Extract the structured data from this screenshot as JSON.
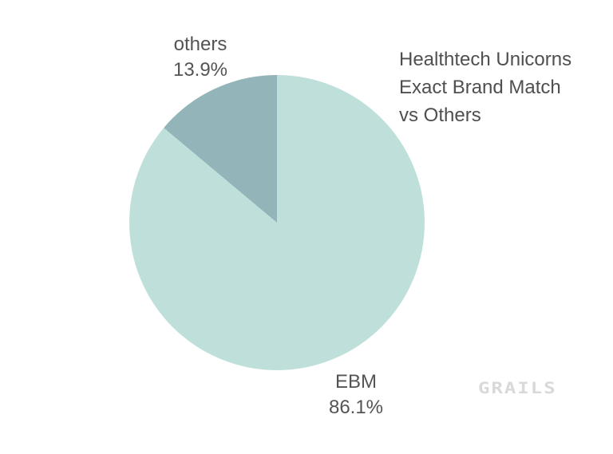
{
  "chart_data": {
    "type": "pie",
    "title": "Healthtech Unicorns Exact Brand Match vs Others",
    "labels": [
      "EBM",
      "others"
    ],
    "values": [
      86.1,
      13.9
    ],
    "colors": [
      "#bfe0da",
      "#93b5b9"
    ],
    "start_angle_deg": 0,
    "direction": "clockwise",
    "legend_position": "none",
    "background": "#ffffff"
  },
  "title": {
    "lines": [
      "Healthtech Unicorns",
      "Exact Brand Match",
      "vs Others"
    ]
  },
  "labels": {
    "others": {
      "name": "others",
      "pct": "13.9%"
    },
    "ebm": {
      "name": "EBM",
      "pct": "86.1%"
    }
  },
  "watermark": {
    "text": "GRAILS"
  },
  "colors": {
    "slice_ebm": "#bfe0da",
    "slice_others": "#93b5b9",
    "title_text": "#4f4f4f",
    "label_text": "#545454",
    "watermark_text": "#d9d9d9",
    "background": "#ffffff"
  }
}
